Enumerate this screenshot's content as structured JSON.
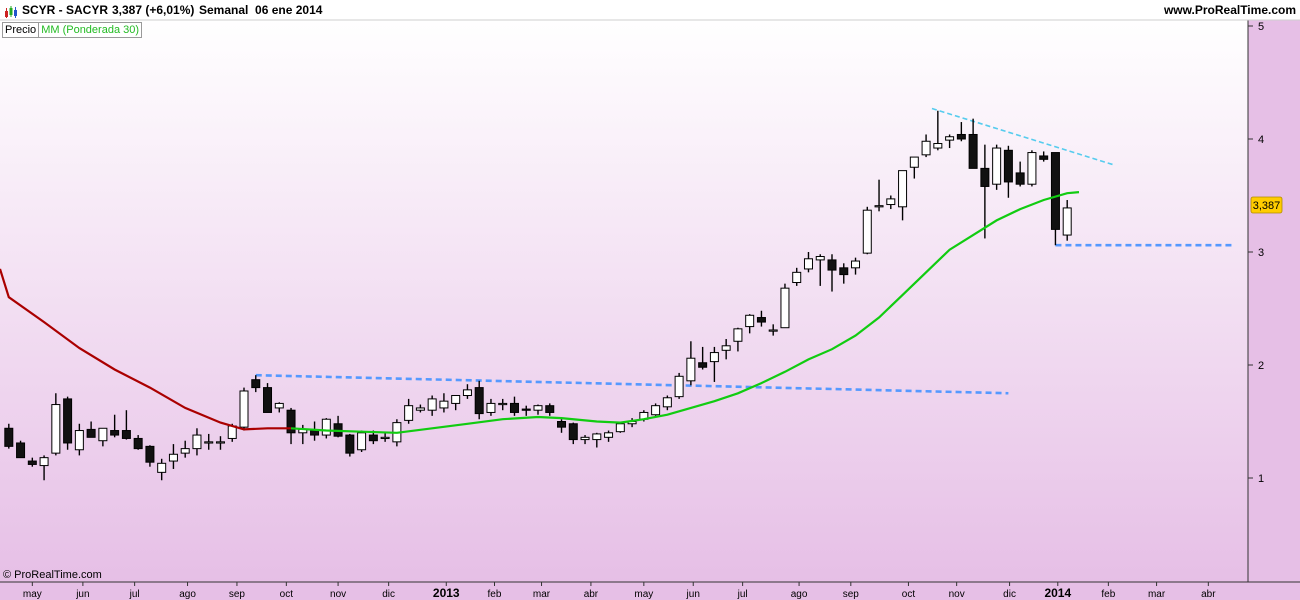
{
  "header": {
    "symbol": "SCYR - SACYR",
    "last_quote": "3,387 (+6,01%)",
    "period": "Semanal  06 ene 2014",
    "site": "www.ProRealTime.com"
  },
  "legend": {
    "price_label": "Precio",
    "ma_label": "MM (Ponderada 30)"
  },
  "footer": {
    "copyright": "© ProRealTime.com"
  },
  "price_badge": "3,387",
  "colors": {
    "background_top": "#ffffff",
    "background_bottom": "#e6bfe6",
    "ma_down": "#aa0000",
    "ma_up": "#11cc11",
    "trendline": "#5599ff",
    "trendline_top": "#55ccee",
    "badge": "#ffcc00"
  },
  "chart_data": {
    "type": "candlestick",
    "title": "SCYR - SACYR",
    "y_ticks": [
      "1",
      "2",
      "3",
      "4",
      "5"
    ],
    "y_range": [
      0.1,
      5.2
    ],
    "x_ticks": [
      "may",
      "jun",
      "jul",
      "ago",
      "sep",
      "oct",
      "nov",
      "dic",
      "2013",
      "feb",
      "mar",
      "abr",
      "may",
      "jun",
      "jul",
      "ago",
      "sep",
      "oct",
      "nov",
      "dic",
      "2014",
      "feb",
      "mar",
      "abr"
    ],
    "x_tick_weeks": [
      2,
      6.3,
      10.7,
      15.2,
      19.4,
      23.6,
      28,
      32.3,
      37.2,
      41.3,
      45.3,
      49.5,
      54,
      58.2,
      62.4,
      67.2,
      71.6,
      76.5,
      80.6,
      85.1,
      89.2,
      93.5,
      97.6,
      102
    ],
    "bold_ticks": [
      "2013",
      "2014"
    ],
    "candles": [
      [
        1.44,
        1.48,
        1.26,
        1.28
      ],
      [
        1.31,
        1.33,
        1.18,
        1.18
      ],
      [
        1.15,
        1.18,
        1.1,
        1.12
      ],
      [
        1.11,
        1.2,
        0.98,
        1.18
      ],
      [
        1.22,
        1.75,
        1.2,
        1.65
      ],
      [
        1.7,
        1.72,
        1.25,
        1.31
      ],
      [
        1.25,
        1.48,
        1.2,
        1.42
      ],
      [
        1.43,
        1.5,
        1.36,
        1.36
      ],
      [
        1.33,
        1.44,
        1.28,
        1.44
      ],
      [
        1.42,
        1.56,
        1.36,
        1.38
      ],
      [
        1.42,
        1.6,
        1.34,
        1.35
      ],
      [
        1.35,
        1.38,
        1.25,
        1.26
      ],
      [
        1.28,
        1.29,
        1.1,
        1.14
      ],
      [
        1.05,
        1.17,
        0.98,
        1.13
      ],
      [
        1.15,
        1.3,
        1.08,
        1.21
      ],
      [
        1.22,
        1.33,
        1.18,
        1.26
      ],
      [
        1.26,
        1.44,
        1.2,
        1.38
      ],
      [
        1.32,
        1.39,
        1.25,
        1.32
      ],
      [
        1.31,
        1.37,
        1.25,
        1.32
      ],
      [
        1.35,
        1.48,
        1.32,
        1.46
      ],
      [
        1.45,
        1.8,
        1.42,
        1.77
      ],
      [
        1.87,
        1.91,
        1.76,
        1.8
      ],
      [
        1.8,
        1.84,
        1.58,
        1.58
      ],
      [
        1.62,
        1.67,
        1.58,
        1.66
      ],
      [
        1.6,
        1.62,
        1.3,
        1.4
      ],
      [
        1.4,
        1.47,
        1.3,
        1.43
      ],
      [
        1.42,
        1.5,
        1.33,
        1.38
      ],
      [
        1.38,
        1.53,
        1.35,
        1.52
      ],
      [
        1.48,
        1.55,
        1.36,
        1.37
      ],
      [
        1.38,
        1.39,
        1.19,
        1.22
      ],
      [
        1.25,
        1.42,
        1.23,
        1.4
      ],
      [
        1.38,
        1.42,
        1.3,
        1.33
      ],
      [
        1.36,
        1.4,
        1.32,
        1.36
      ],
      [
        1.32,
        1.52,
        1.28,
        1.49
      ],
      [
        1.51,
        1.7,
        1.48,
        1.64
      ],
      [
        1.6,
        1.65,
        1.58,
        1.62
      ],
      [
        1.6,
        1.73,
        1.55,
        1.7
      ],
      [
        1.62,
        1.75,
        1.58,
        1.68
      ],
      [
        1.66,
        1.73,
        1.6,
        1.73
      ],
      [
        1.73,
        1.83,
        1.7,
        1.78
      ],
      [
        1.8,
        1.86,
        1.52,
        1.57
      ],
      [
        1.58,
        1.7,
        1.55,
        1.66
      ],
      [
        1.66,
        1.7,
        1.6,
        1.66
      ],
      [
        1.66,
        1.72,
        1.55,
        1.58
      ],
      [
        1.61,
        1.64,
        1.55,
        1.6
      ],
      [
        1.6,
        1.65,
        1.56,
        1.64
      ],
      [
        1.64,
        1.66,
        1.55,
        1.58
      ],
      [
        1.5,
        1.52,
        1.4,
        1.45
      ],
      [
        1.48,
        1.49,
        1.3,
        1.34
      ],
      [
        1.34,
        1.38,
        1.3,
        1.36
      ],
      [
        1.34,
        1.4,
        1.27,
        1.39
      ],
      [
        1.36,
        1.42,
        1.32,
        1.4
      ],
      [
        1.41,
        1.5,
        1.4,
        1.48
      ],
      [
        1.48,
        1.53,
        1.45,
        1.5
      ],
      [
        1.52,
        1.6,
        1.5,
        1.58
      ],
      [
        1.56,
        1.66,
        1.55,
        1.64
      ],
      [
        1.63,
        1.73,
        1.6,
        1.71
      ],
      [
        1.72,
        1.93,
        1.7,
        1.9
      ],
      [
        1.86,
        2.21,
        1.82,
        2.06
      ],
      [
        2.02,
        2.16,
        1.96,
        1.98
      ],
      [
        2.03,
        2.16,
        1.85,
        2.11
      ],
      [
        2.13,
        2.23,
        2.05,
        2.17
      ],
      [
        2.21,
        2.33,
        2.12,
        2.32
      ],
      [
        2.34,
        2.45,
        2.28,
        2.44
      ],
      [
        2.42,
        2.48,
        2.34,
        2.38
      ],
      [
        2.3,
        2.36,
        2.26,
        2.31
      ],
      [
        2.33,
        2.72,
        2.33,
        2.68
      ],
      [
        2.73,
        2.86,
        2.7,
        2.82
      ],
      [
        2.85,
        3.0,
        2.82,
        2.94
      ],
      [
        2.93,
        2.98,
        2.7,
        2.96
      ],
      [
        2.93,
        2.98,
        2.65,
        2.84
      ],
      [
        2.86,
        2.9,
        2.72,
        2.8
      ],
      [
        2.86,
        2.95,
        2.8,
        2.92
      ],
      [
        2.99,
        3.4,
        2.98,
        3.37
      ],
      [
        3.4,
        3.64,
        3.36,
        3.41
      ],
      [
        3.42,
        3.5,
        3.38,
        3.47
      ],
      [
        3.4,
        3.72,
        3.28,
        3.72
      ],
      [
        3.75,
        3.84,
        3.65,
        3.84
      ],
      [
        3.86,
        4.04,
        3.84,
        3.98
      ],
      [
        3.92,
        4.25,
        3.9,
        3.96
      ],
      [
        3.99,
        4.04,
        3.92,
        4.02
      ],
      [
        4.04,
        4.15,
        3.98,
        4.0
      ],
      [
        4.04,
        4.18,
        3.76,
        3.74
      ],
      [
        3.74,
        3.95,
        3.12,
        3.58
      ],
      [
        3.6,
        3.95,
        3.55,
        3.92
      ],
      [
        3.9,
        3.94,
        3.48,
        3.62
      ],
      [
        3.7,
        3.8,
        3.58,
        3.6
      ],
      [
        3.6,
        3.9,
        3.58,
        3.88
      ],
      [
        3.85,
        3.89,
        3.8,
        3.82
      ],
      [
        3.88,
        3.86,
        3.06,
        3.2
      ],
      [
        3.15,
        3.46,
        3.1,
        3.39
      ]
    ],
    "moving_average": {
      "name": "MM (Ponderada 30)",
      "start_price": 2.85,
      "points": [
        [
          0,
          2.6
        ],
        [
          3,
          2.38
        ],
        [
          6,
          2.15
        ],
        [
          9,
          1.96
        ],
        [
          12,
          1.8
        ],
        [
          15,
          1.62
        ],
        [
          18,
          1.49
        ],
        [
          20,
          1.43
        ],
        [
          22,
          1.44
        ],
        [
          24,
          1.44
        ],
        [
          27,
          1.42
        ],
        [
          30,
          1.41
        ],
        [
          33,
          1.4
        ],
        [
          36,
          1.44
        ],
        [
          39,
          1.48
        ],
        [
          42,
          1.52
        ],
        [
          45,
          1.54
        ],
        [
          47,
          1.53
        ],
        [
          50,
          1.5
        ],
        [
          52,
          1.49
        ],
        [
          54,
          1.52
        ],
        [
          56,
          1.56
        ],
        [
          58,
          1.62
        ],
        [
          60,
          1.68
        ],
        [
          62,
          1.75
        ],
        [
          64,
          1.84
        ],
        [
          66,
          1.94
        ],
        [
          68,
          2.05
        ],
        [
          70,
          2.14
        ],
        [
          72,
          2.26
        ],
        [
          74,
          2.42
        ],
        [
          76,
          2.62
        ],
        [
          78,
          2.82
        ],
        [
          80,
          3.02
        ],
        [
          82,
          3.15
        ],
        [
          84,
          3.28
        ],
        [
          86,
          3.38
        ],
        [
          88,
          3.46
        ],
        [
          90,
          3.52
        ],
        [
          91,
          3.53
        ]
      ],
      "down_until_week": 23
    },
    "trendlines": [
      {
        "from": [
          21,
          1.91
        ],
        "to": [
          85,
          1.75
        ]
      },
      {
        "from": [
          78.5,
          4.27
        ],
        "to": [
          94,
          3.77
        ],
        "top": true
      },
      {
        "from": [
          89,
          3.06
        ],
        "to": [
          104,
          3.06
        ]
      }
    ]
  }
}
